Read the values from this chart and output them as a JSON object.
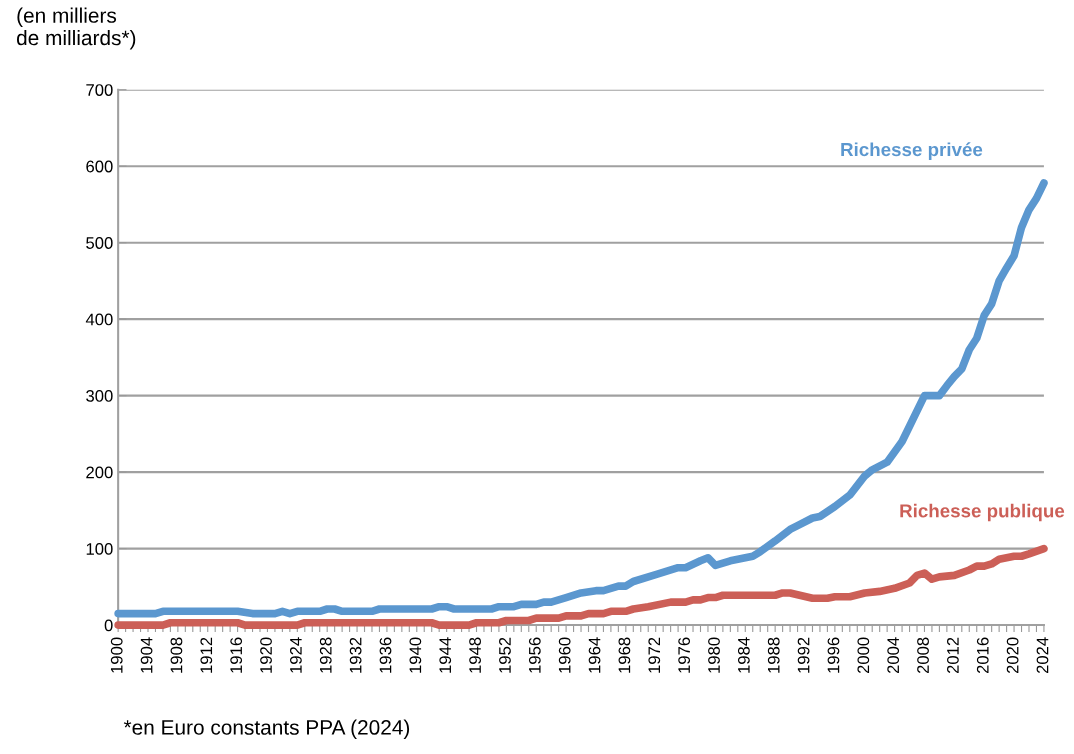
{
  "chart_data": {
    "type": "line",
    "ylabel": "(en milliers\nde milliards*)",
    "annotations": [
      "*en Euro constants PPA (2024)"
    ],
    "series": [
      {
        "name": "Richesse privée",
        "color": "#5b97cf",
        "x": [
          1900,
          1905,
          1906,
          1916,
          1918,
          1921,
          1922,
          1923,
          1924,
          1927,
          1928,
          1929,
          1930,
          1934,
          1935,
          1942,
          1943,
          1944,
          1945,
          1950,
          1951,
          1953,
          1954,
          1956,
          1957,
          1958,
          1960,
          1962,
          1964,
          1965,
          1967,
          1968,
          1969,
          1972,
          1975,
          1976,
          1978,
          1979,
          1980,
          1982,
          1985,
          1986,
          1988,
          1990,
          1991,
          1993,
          1994,
          1996,
          1998,
          2000,
          2001,
          2003,
          2005,
          2006,
          2008,
          2010,
          2011,
          2012,
          2013,
          2014,
          2015,
          2016,
          2017,
          2018,
          2019,
          2020,
          2021,
          2022,
          2023,
          2024
        ],
        "values": [
          15,
          15,
          18,
          18,
          15,
          15,
          18,
          15,
          18,
          18,
          21,
          21,
          18,
          18,
          21,
          21,
          24,
          24,
          21,
          21,
          24,
          24,
          27,
          27,
          30,
          30,
          36,
          42,
          45,
          45,
          51,
          51,
          57,
          66,
          75,
          75,
          84,
          88,
          78,
          84,
          90,
          96,
          110,
          125,
          130,
          140,
          142,
          155,
          170,
          195,
          203,
          213,
          240,
          260,
          300,
          300,
          313,
          325,
          335,
          360,
          375,
          405,
          420,
          450,
          467,
          483,
          520,
          543,
          558,
          578
        ]
      },
      {
        "name": "Richesse publique",
        "color": "#cc5f57",
        "x": [
          1900,
          1906,
          1907,
          1916,
          1917,
          1924,
          1925,
          1942,
          1943,
          1947,
          1948,
          1951,
          1952,
          1955,
          1956,
          1959,
          1960,
          1962,
          1963,
          1965,
          1966,
          1968,
          1969,
          1971,
          1974,
          1976,
          1977,
          1978,
          1979,
          1980,
          1981,
          1988,
          1989,
          1990,
          1993,
          1995,
          1996,
          1998,
          2000,
          2002,
          2004,
          2006,
          2007,
          2008,
          2009,
          2010,
          2012,
          2014,
          2015,
          2016,
          2017,
          2018,
          2019,
          2020,
          2021,
          2022,
          2024
        ],
        "values": [
          0,
          0,
          3,
          3,
          0,
          0,
          3,
          3,
          0,
          0,
          3,
          3,
          6,
          6,
          9,
          9,
          12,
          12,
          15,
          15,
          18,
          18,
          21,
          24,
          30,
          30,
          33,
          33,
          36,
          36,
          39,
          39,
          42,
          42,
          35,
          35,
          37,
          37,
          42,
          44,
          48,
          55,
          65,
          68,
          60,
          63,
          65,
          72,
          77,
          77,
          80,
          86,
          88,
          90,
          90,
          93,
          100
        ]
      }
    ],
    "xlim": [
      1900,
      2024
    ],
    "xticks": [
      1900,
      {
        "value": 1901,
        "label": null
      },
      {
        "value": 1902,
        "label": null
      },
      {
        "value": 1903,
        "label": null
      },
      1904,
      {
        "value": 1905,
        "label": null
      },
      {
        "value": 1906,
        "label": null
      },
      {
        "value": 1907,
        "label": null
      },
      1908,
      {
        "value": 1909,
        "label": null
      },
      {
        "value": 1910,
        "label": null
      },
      {
        "value": 1911,
        "label": null
      },
      1912,
      {
        "value": 1913,
        "label": null
      },
      {
        "value": 1914,
        "label": null
      },
      {
        "value": 1915,
        "label": null
      },
      1916,
      {
        "value": 1917,
        "label": null
      },
      {
        "value": 1918,
        "label": null
      },
      {
        "value": 1919,
        "label": null
      },
      1920,
      {
        "value": 1921,
        "label": null
      },
      {
        "value": 1922,
        "label": null
      },
      {
        "value": 1923,
        "label": null
      },
      1924,
      {
        "value": 1925,
        "label": null
      },
      {
        "value": 1926,
        "label": null
      },
      {
        "value": 1927,
        "label": null
      },
      1928,
      {
        "value": 1929,
        "label": null
      },
      {
        "value": 1930,
        "label": null
      },
      {
        "value": 1931,
        "label": null
      },
      1932,
      {
        "value": 1933,
        "label": null
      },
      {
        "value": 1934,
        "label": null
      },
      {
        "value": 1935,
        "label": null
      },
      1936,
      {
        "value": 1937,
        "label": null
      },
      {
        "value": 1938,
        "label": null
      },
      {
        "value": 1939,
        "label": null
      },
      1940,
      {
        "value": 1941,
        "label": null
      },
      {
        "value": 1942,
        "label": null
      },
      {
        "value": 1943,
        "label": null
      },
      1944,
      {
        "value": 1945,
        "label": null
      },
      {
        "value": 1946,
        "label": null
      },
      {
        "value": 1947,
        "label": null
      },
      1948,
      {
        "value": 1949,
        "label": null
      },
      {
        "value": 1950,
        "label": null
      },
      {
        "value": 1951,
        "label": null
      },
      1952,
      {
        "value": 1953,
        "label": null
      },
      {
        "value": 1954,
        "label": null
      },
      {
        "value": 1955,
        "label": null
      },
      1956,
      {
        "value": 1957,
        "label": null
      },
      {
        "value": 1958,
        "label": null
      },
      {
        "value": 1959,
        "label": null
      },
      1960,
      {
        "value": 1961,
        "label": null
      },
      {
        "value": 1962,
        "label": null
      },
      {
        "value": 1963,
        "label": null
      },
      1964,
      {
        "value": 1965,
        "label": null
      },
      {
        "value": 1966,
        "label": null
      },
      {
        "value": 1967,
        "label": null
      },
      1968,
      {
        "value": 1969,
        "label": null
      },
      {
        "value": 1970,
        "label": null
      },
      {
        "value": 1971,
        "label": null
      },
      1972,
      {
        "value": 1973,
        "label": null
      },
      {
        "value": 1974,
        "label": null
      },
      {
        "value": 1975,
        "label": null
      },
      1976,
      {
        "value": 1977,
        "label": null
      },
      {
        "value": 1978,
        "label": null
      },
      {
        "value": 1979,
        "label": null
      },
      1980,
      {
        "value": 1981,
        "label": null
      },
      {
        "value": 1982,
        "label": null
      },
      {
        "value": 1983,
        "label": null
      },
      1984,
      {
        "value": 1985,
        "label": null
      },
      {
        "value": 1986,
        "label": null
      },
      {
        "value": 1987,
        "label": null
      },
      1988,
      {
        "value": 1989,
        "label": null
      },
      {
        "value": 1990,
        "label": null
      },
      {
        "value": 1991,
        "label": null
      },
      1992,
      {
        "value": 1993,
        "label": null
      },
      {
        "value": 1994,
        "label": null
      },
      {
        "value": 1995,
        "label": null
      },
      1996,
      {
        "value": 1997,
        "label": null
      },
      {
        "value": 1998,
        "label": null
      },
      {
        "value": 1999,
        "label": null
      },
      2000,
      {
        "value": 2001,
        "label": null
      },
      {
        "value": 2002,
        "label": null
      },
      {
        "value": 2003,
        "label": null
      },
      2004,
      {
        "value": 2005,
        "label": null
      },
      {
        "value": 2006,
        "label": null
      },
      {
        "value": 2007,
        "label": null
      },
      2008,
      {
        "value": 2009,
        "label": null
      },
      {
        "value": 2010,
        "label": null
      },
      {
        "value": 2011,
        "label": null
      },
      2012,
      {
        "value": 2013,
        "label": null
      },
      {
        "value": 2014,
        "label": null
      },
      {
        "value": 2015,
        "label": null
      },
      2016,
      {
        "value": 2017,
        "label": null
      },
      {
        "value": 2018,
        "label": null
      },
      {
        "value": 2019,
        "label": null
      },
      2020,
      {
        "value": 2021,
        "label": null
      },
      {
        "value": 2022,
        "label": null
      },
      {
        "value": 2023,
        "label": null
      },
      2024
    ],
    "ylim": [
      0,
      700
    ],
    "yticks": [
      0,
      100,
      200,
      300,
      400,
      500,
      600,
      700
    ],
    "grid": "y",
    "legend": false,
    "marker": "none",
    "line_style": "solid"
  }
}
